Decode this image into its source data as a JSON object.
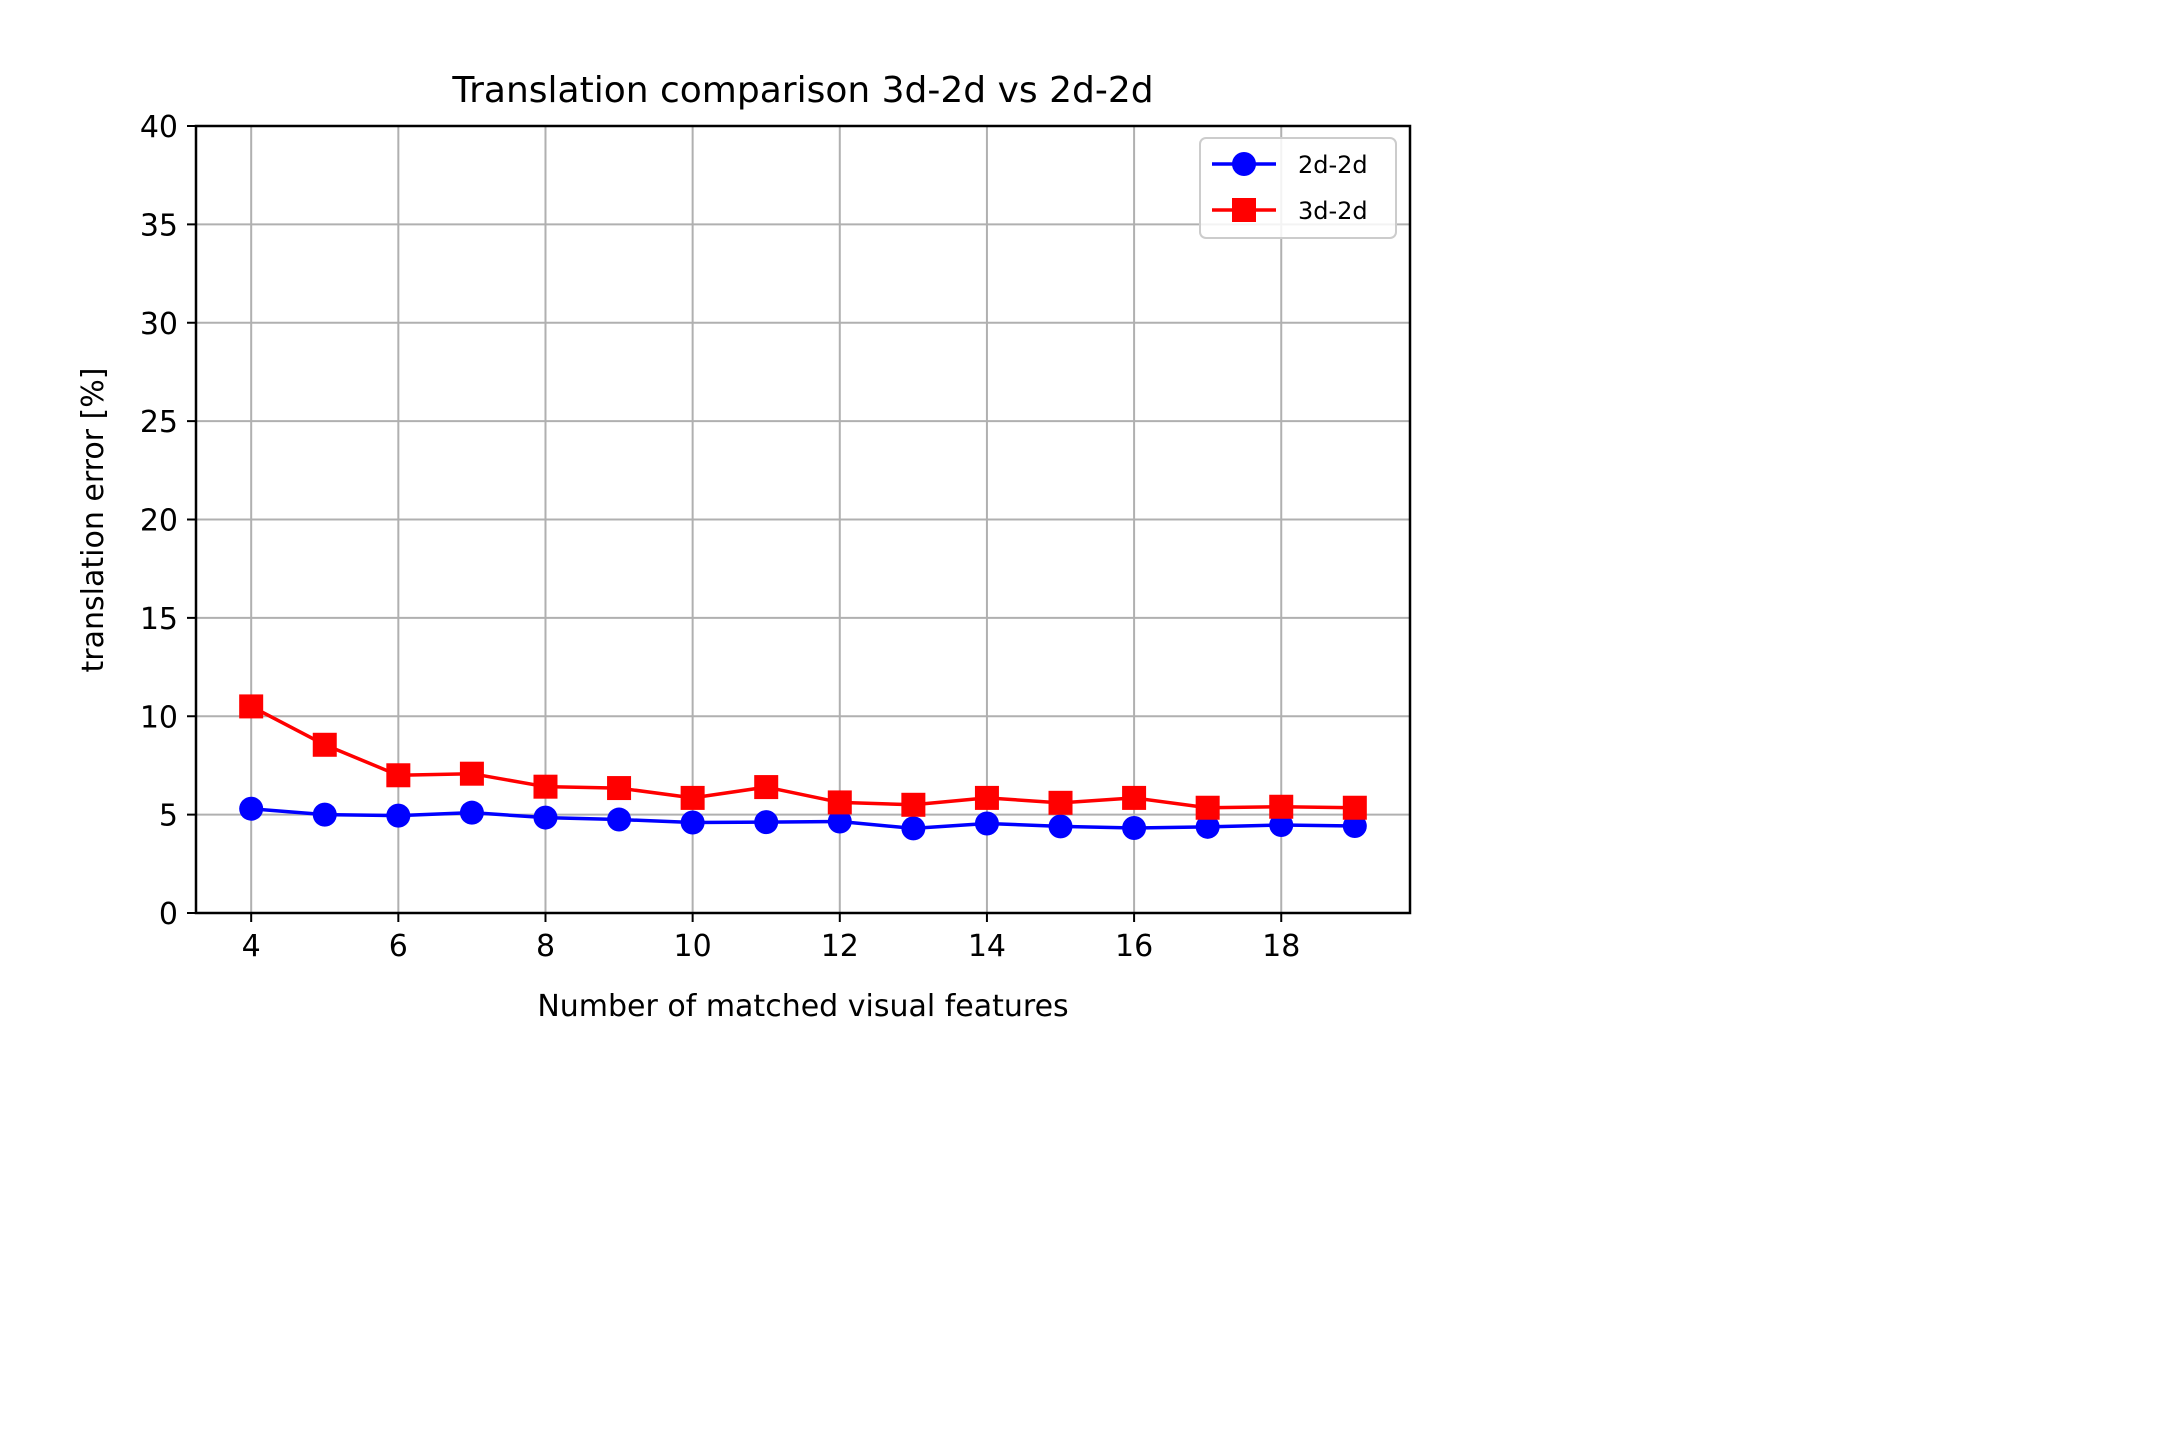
{
  "chart_data": {
    "type": "line",
    "title": "Translation comparison 3d-2d vs 2d-2d",
    "xlabel": "Number of matched visual features",
    "ylabel": "translation error [%]",
    "x": [
      4,
      5,
      6,
      7,
      8,
      9,
      10,
      11,
      12,
      13,
      14,
      15,
      16,
      17,
      18,
      19
    ],
    "xlim": [
      3.25,
      19.75
    ],
    "ylim": [
      0,
      40
    ],
    "xticks": [
      4,
      6,
      8,
      10,
      12,
      14,
      16,
      18
    ],
    "yticks": [
      0,
      5,
      10,
      15,
      20,
      25,
      30,
      35,
      40
    ],
    "grid": true,
    "legend_position": "top-right",
    "series": [
      {
        "name": "2d-2d",
        "color": "#0000ff",
        "marker": "circle",
        "values": [
          5.3,
          5.0,
          4.95,
          5.1,
          4.85,
          4.75,
          4.6,
          4.62,
          4.65,
          4.3,
          4.55,
          4.4,
          4.32,
          4.38,
          4.47,
          4.42
        ]
      },
      {
        "name": "3d-2d",
        "color": "#ff0000",
        "marker": "square",
        "values": [
          10.5,
          8.55,
          7.0,
          7.08,
          6.42,
          6.35,
          5.85,
          6.4,
          5.62,
          5.5,
          5.85,
          5.6,
          5.85,
          5.35,
          5.4,
          5.35
        ]
      }
    ]
  }
}
